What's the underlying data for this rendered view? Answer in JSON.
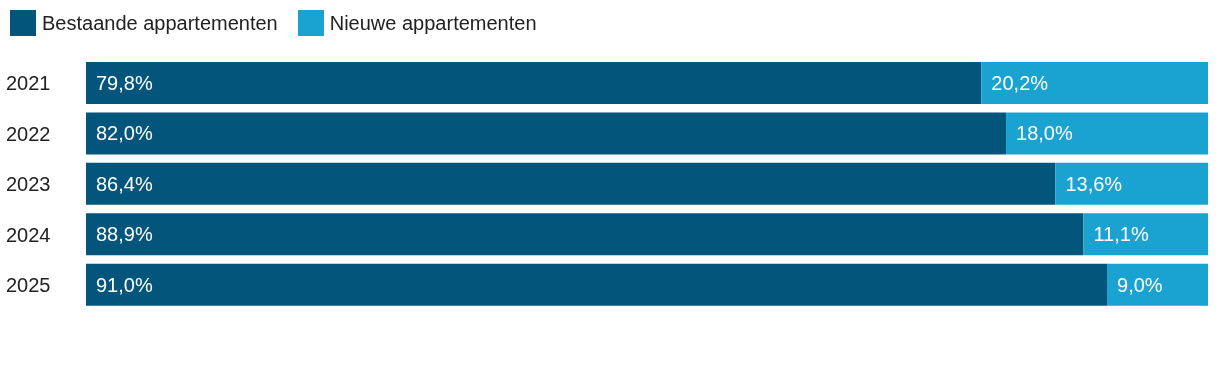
{
  "chart_data": {
    "type": "bar",
    "orientation": "horizontal",
    "stacked": true,
    "legend": "top left",
    "categories": [
      "2021",
      "2022",
      "2023",
      "2024",
      "2025"
    ],
    "series": [
      {
        "name": "Bestaande appartementen",
        "color": "#03557c",
        "values": [
          79.8,
          82.0,
          86.4,
          88.9,
          91.0
        ],
        "value_labels": [
          "79,8%",
          "82,0%",
          "86,4%",
          "88,9%",
          "91,0%"
        ]
      },
      {
        "name": "Nieuwe appartementen",
        "color": "#1aa3d1",
        "values": [
          20.2,
          18.0,
          13.6,
          11.1,
          9.0
        ],
        "value_labels": [
          "20,2%",
          "18,0%",
          "13,6%",
          "11,1%",
          "9,0%"
        ]
      }
    ]
  }
}
